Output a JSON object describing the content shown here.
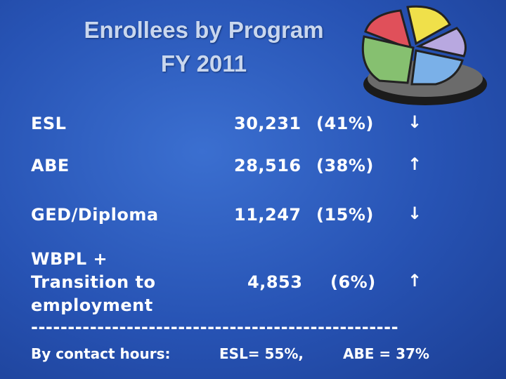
{
  "title": {
    "line1": "Enrollees by Program",
    "line2": "FY 2011"
  },
  "rows": [
    {
      "program": [
        "ESL"
      ],
      "count": "30,231",
      "percent": "(41%)",
      "trend": "↓"
    },
    {
      "program": [
        "ABE"
      ],
      "count": "28,516",
      "percent": "(38%)",
      "trend": "↑"
    },
    {
      "program": [
        "GED/Diploma"
      ],
      "count": "11,247",
      "percent": "(15%)",
      "trend": "↓"
    },
    {
      "program": [
        "WBPL +",
        "Transition to",
        "employment"
      ],
      "count": "4,853",
      "percent": "(6%)",
      "trend": "↑"
    }
  ],
  "divider": "--------------------------------------------------",
  "footer": {
    "label": "By contact hours:",
    "esl": "ESL= 55%,",
    "abe": "ABE = 37%"
  }
}
